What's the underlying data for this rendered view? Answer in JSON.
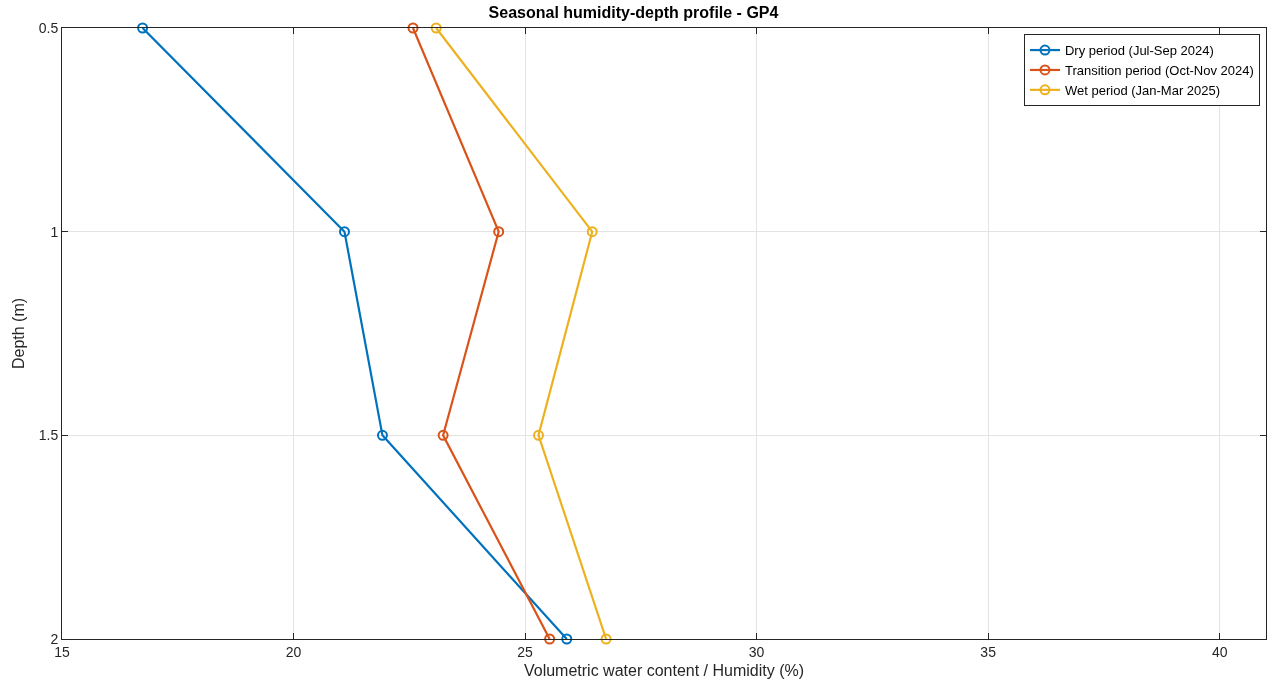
{
  "chart_data": {
    "type": "line",
    "title": "Seasonal humidity-depth profile - GP4",
    "xlabel": "Volumetric water content / Humidity (%)",
    "ylabel": "Depth (m)",
    "series": [
      {
        "name": "Dry period (Jul-Sep 2024)",
        "color": "#0072bd",
        "x": [
          16.74,
          21.1,
          21.92,
          25.9
        ],
        "values": [
          0.5,
          1,
          1.5,
          2
        ]
      },
      {
        "name": "Transition period (Oct-Nov 2024)",
        "color": "#d95319",
        "x": [
          22.58,
          24.43,
          23.23,
          25.53
        ],
        "values": [
          0.5,
          1,
          1.5,
          2
        ]
      },
      {
        "name": "Wet period (Jan-Mar 2025)",
        "color": "#edb120",
        "x": [
          23.08,
          26.45,
          25.29,
          26.75
        ],
        "values": [
          0.5,
          1,
          1.5,
          2
        ]
      }
    ],
    "xlim": [
      15,
      41
    ],
    "xticks": [
      15,
      20,
      25,
      30,
      35,
      40
    ],
    "ylim": [
      2,
      0.5
    ],
    "yticks": [
      0.5,
      1,
      1.5,
      2
    ],
    "grid": true,
    "legend": "top right",
    "marker": "circle",
    "line_style": "solid"
  }
}
